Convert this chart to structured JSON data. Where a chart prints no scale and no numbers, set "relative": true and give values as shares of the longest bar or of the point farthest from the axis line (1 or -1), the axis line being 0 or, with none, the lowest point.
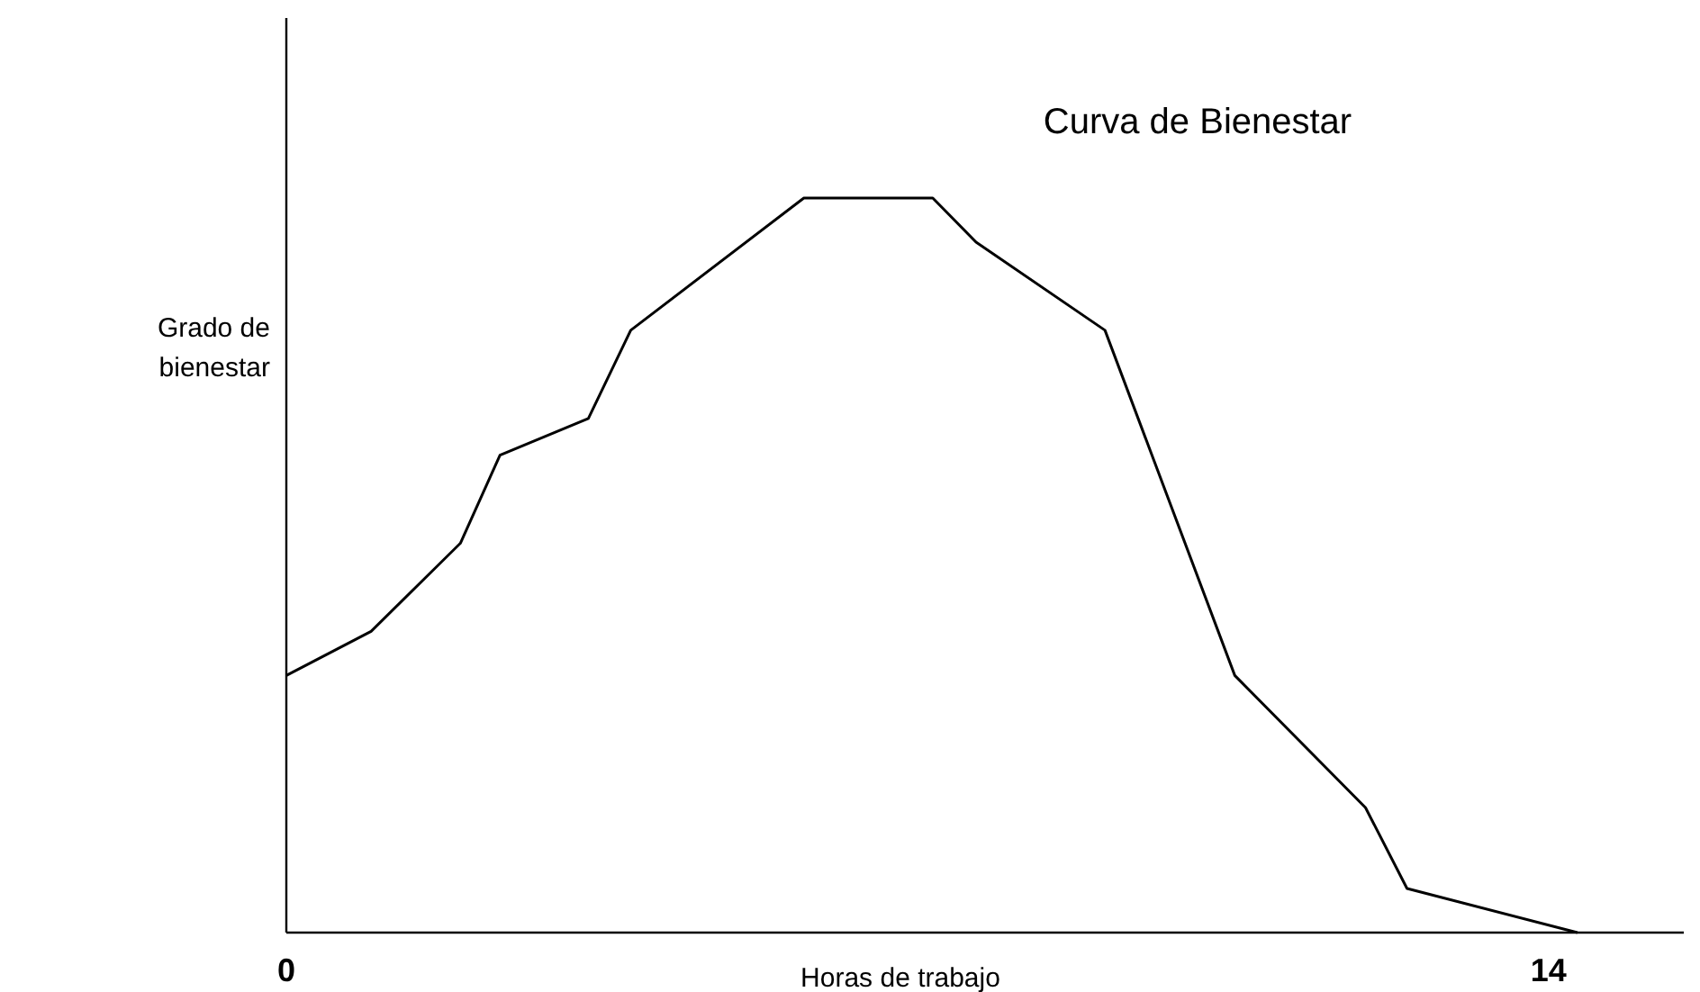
{
  "chart_data": {
    "type": "line",
    "title": "Curva de Bienestar",
    "xlabel": "Horas de trabajo",
    "ylabel": "Grado de bienestar",
    "relative": true,
    "x": [
      0,
      0.94,
      1.93,
      2.37,
      3.35,
      3.82,
      5.74,
      7.17,
      7.65,
      9.08,
      10.52,
      11.97,
      12.43,
      14.32
    ],
    "series": [
      {
        "color": "#000000",
        "values": [
          0.35,
          0.41,
          0.53,
          0.65,
          0.7,
          0.82,
          1,
          1,
          0.94,
          0.82,
          0.35,
          0.17,
          0.06,
          0
        ]
      }
    ],
    "xlim": [
      0,
      15.5
    ],
    "xticks": [
      0,
      14
    ],
    "grid": false,
    "marker": "none",
    "line_style": "solid"
  }
}
